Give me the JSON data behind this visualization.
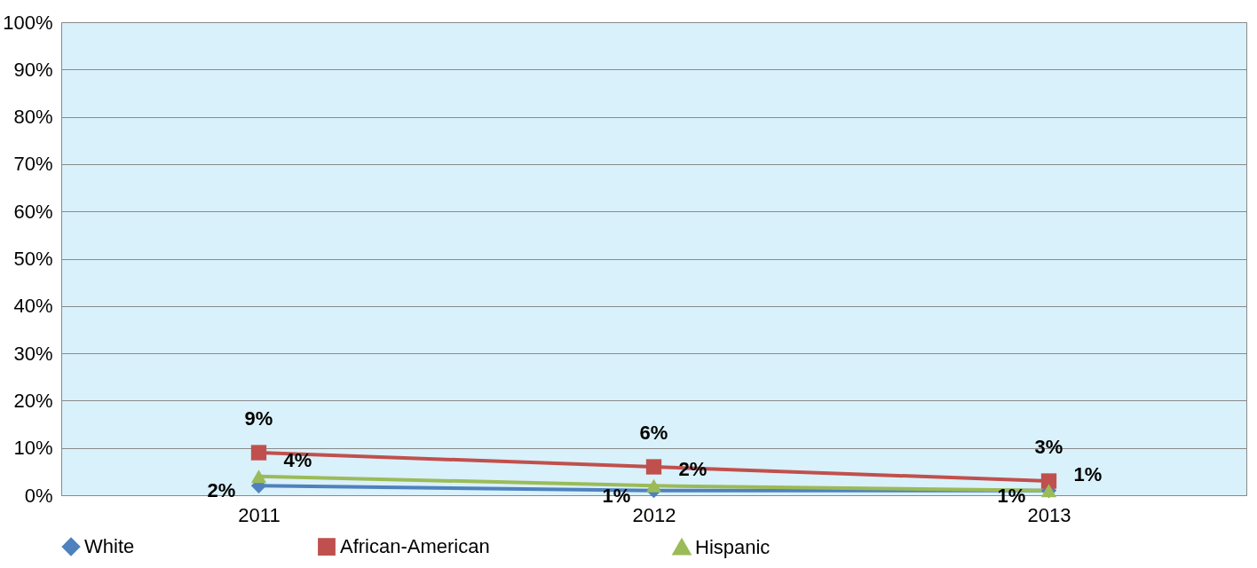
{
  "chart_data": {
    "type": "line",
    "categories": [
      "2011",
      "2012",
      "2013"
    ],
    "series": [
      {
        "name": "White",
        "color": "#4f81bd",
        "marker": "diamond",
        "values": [
          2,
          1,
          1
        ],
        "value_labels": [
          "2%",
          "1%",
          "1%"
        ]
      },
      {
        "name": "African-American",
        "color": "#c0504d",
        "marker": "square",
        "values": [
          9,
          6,
          3
        ],
        "value_labels": [
          "9%",
          "6%",
          "3%"
        ]
      },
      {
        "name": "Hispanic",
        "color": "#9bbb59",
        "marker": "triangle",
        "values": [
          4,
          2,
          1
        ],
        "value_labels": [
          "4%",
          "2%",
          "1%"
        ]
      }
    ],
    "ylim": [
      0,
      100
    ],
    "yticks": [
      {
        "value": 0,
        "label": "0%"
      },
      {
        "value": 10,
        "label": "10%"
      },
      {
        "value": 20,
        "label": "20%"
      },
      {
        "value": 30,
        "label": "30%"
      },
      {
        "value": 40,
        "label": "40%"
      },
      {
        "value": 50,
        "label": "50%"
      },
      {
        "value": 60,
        "label": "60%"
      },
      {
        "value": 70,
        "label": "70%"
      },
      {
        "value": 80,
        "label": "80%"
      },
      {
        "value": 90,
        "label": "90%"
      },
      {
        "value": 100,
        "label": "100%"
      }
    ],
    "grid": "y",
    "legend": "bottom",
    "line_style": "solid"
  }
}
